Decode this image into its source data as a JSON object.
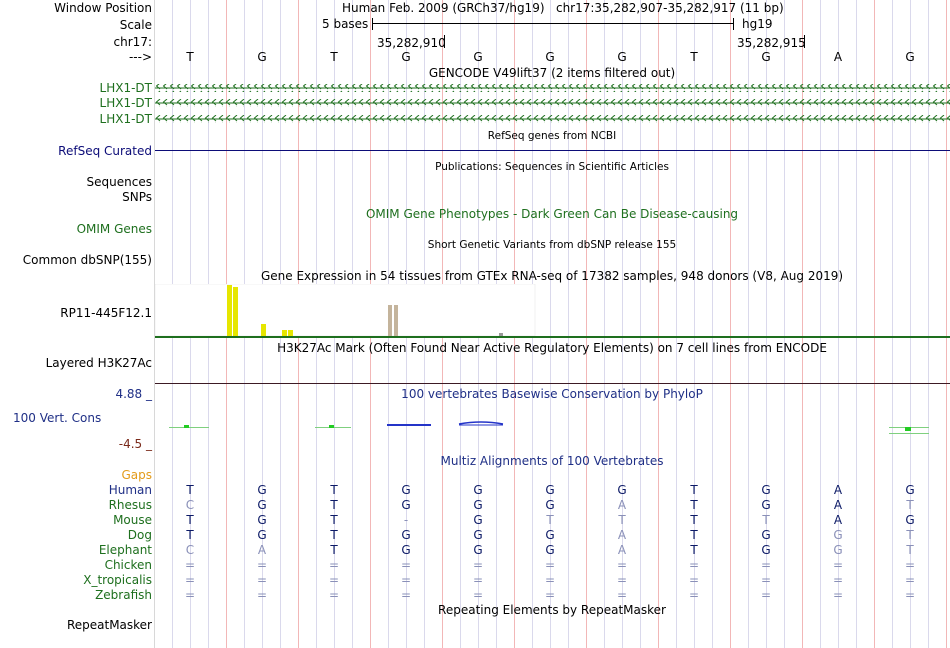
{
  "header": {
    "window_position_label": "Window Position",
    "assembly_text": "Human Feb. 2009 (GRCh37/hg19)",
    "position_text": "chr17:35,282,907-35,282,917 (11 bp)",
    "scale_label": "Scale",
    "scale_text": "5 bases",
    "scale_assembly": "hg19",
    "chrom_label": "chr17:",
    "coord_ticks": [
      {
        "label": "35,282,910"
      },
      {
        "label": "35,282,915"
      }
    ],
    "strand_label": "--->"
  },
  "sequence": [
    "T",
    "G",
    "T",
    "G",
    "G",
    "G",
    "G",
    "T",
    "G",
    "A",
    "G"
  ],
  "tracks": {
    "gencode": {
      "title": "GENCODE V49lift37 (2 items filtered out)",
      "items": [
        "LHX1-DT",
        "LHX1-DT",
        "LHX1-DT"
      ],
      "color": "#1e6f1e"
    },
    "refseq": {
      "subtitle": "RefSeq genes from NCBI",
      "label": "RefSeq Curated",
      "color": "#0c0c78"
    },
    "publications": {
      "subtitle": "Publications: Sequences in Scientific Articles",
      "labels": [
        "Sequences",
        "SNPs"
      ]
    },
    "omim": {
      "title": "OMIM Gene Phenotypes - Dark Green Can Be Disease-causing",
      "label": "OMIM Genes",
      "color": "#1e6f1e"
    },
    "dbsnp": {
      "subtitle": "Short Genetic Variants from dbSNP release 155",
      "label": "Common dbSNP(155)"
    },
    "gtex": {
      "title": "Gene Expression in 54 tissues from GTEx RNA-seq of 17382 samples, 948 donors (V8, Aug 2019)",
      "label": "RP11-445F12.1",
      "bar_color": "#e6e600",
      "bar2_color": "#c4b49c",
      "line_color": "#1e6f1e"
    },
    "h3k27ac": {
      "title": "H3K27Ac Mark (Often Found Near Active Regulatory Elements) on 7 cell lines from ENCODE",
      "label": "Layered H3K27Ac",
      "line_color": "#3c1a24"
    },
    "conservation": {
      "title": "100 vertebrates Basewise Conservation by PhyloP",
      "label": "100 Vert. Cons",
      "ymax": "4.88 _",
      "ymin": "-4.5 _",
      "color": "#1f2f86"
    },
    "multiz": {
      "gaps_label": "Gaps",
      "title": "Multiz Alignments of 100 Vertebrates",
      "species": [
        {
          "name": "Human",
          "bases": [
            "T",
            "G",
            "T",
            "G",
            "G",
            "G",
            "G",
            "T",
            "G",
            "A",
            "G"
          ]
        },
        {
          "name": "Rhesus",
          "bases": [
            "C",
            "G",
            "T",
            "G",
            "G",
            "G",
            "A",
            "T",
            "G",
            "A",
            "T"
          ]
        },
        {
          "name": "Mouse",
          "bases": [
            "T",
            "G",
            "T",
            "-",
            "G",
            "T",
            "T",
            "T",
            "T",
            "A",
            "G"
          ]
        },
        {
          "name": "Dog",
          "bases": [
            "T",
            "G",
            "T",
            "G",
            "G",
            "G",
            "A",
            "T",
            "G",
            "G",
            "T"
          ]
        },
        {
          "name": "Elephant",
          "bases": [
            "C",
            "A",
            "T",
            "G",
            "G",
            "G",
            "A",
            "T",
            "G",
            "G",
            "T"
          ]
        },
        {
          "name": "Chicken",
          "bases": [
            "=",
            "=",
            "=",
            "=",
            "=",
            "=",
            "=",
            "=",
            "=",
            "=",
            "="
          ]
        },
        {
          "name": "X_tropicalis",
          "bases": [
            "=",
            "=",
            "=",
            "=",
            "=",
            "=",
            "=",
            "=",
            "=",
            "=",
            "="
          ]
        },
        {
          "name": "Zebrafish",
          "bases": [
            "=",
            "=",
            "=",
            "=",
            "=",
            "=",
            "=",
            "=",
            "=",
            "=",
            "="
          ]
        }
      ],
      "match_color": "#0c1a66",
      "mismatch_color": "#8a90b8",
      "gaps_color": "#e39b1a",
      "species_color": "#1e6f1e"
    },
    "repeatmasker": {
      "title": "Repeating Elements by RepeatMasker",
      "label": "RepeatMasker"
    }
  }
}
